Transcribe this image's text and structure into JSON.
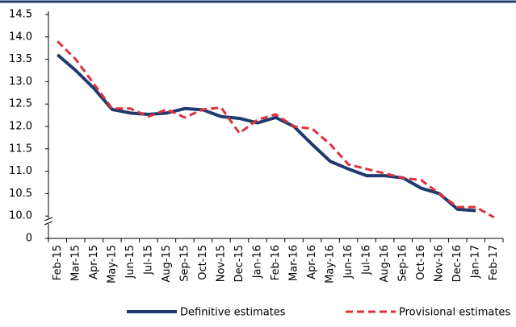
{
  "chart_data": {
    "type": "line",
    "categories": [
      "Feb-15",
      "Mar-15",
      "Apr-15",
      "May-15",
      "Jun-15",
      "Jul-15",
      "Aug-15",
      "Sep-15",
      "Oct-15",
      "Nov-15",
      "Dec-15",
      "Jan-16",
      "Feb-16",
      "Mar-16",
      "Apr-16",
      "May-16",
      "Jun-16",
      "Jul-16",
      "Aug-16",
      "Sep-16",
      "Oct-16",
      "Nov-16",
      "Dec-16",
      "Jan-17",
      "Feb-17"
    ],
    "series": [
      {
        "name": "Definitive estimates",
        "color": "#1f3a6e",
        "dashed": false,
        "values": [
          13.6,
          13.25,
          12.85,
          12.38,
          12.3,
          12.27,
          12.3,
          12.4,
          12.37,
          12.22,
          12.18,
          12.08,
          12.2,
          12.0,
          11.6,
          11.22,
          11.05,
          10.9,
          10.9,
          10.85,
          10.62,
          10.5,
          10.15,
          10.12,
          null
        ]
      },
      {
        "name": "Provisional estimates",
        "color": "#e0303a",
        "dashed": true,
        "values": [
          13.9,
          13.5,
          12.95,
          12.4,
          12.4,
          12.22,
          12.38,
          12.2,
          12.38,
          12.42,
          11.85,
          12.15,
          12.27,
          12.0,
          11.95,
          11.6,
          11.15,
          11.05,
          10.95,
          10.85,
          10.8,
          10.5,
          10.2,
          10.2,
          9.97
        ]
      }
    ],
    "ylim": [
      9.5,
      14.5
    ],
    "axis_break": true,
    "yticks": [
      0,
      {
        "value": 10,
        "label": "10.0"
      },
      10.5,
      {
        "value": 11,
        "label": "11.0"
      },
      11.5,
      {
        "value": 12,
        "label": "12.0"
      },
      12.5,
      {
        "value": 13,
        "label": "13.0"
      },
      13.5,
      {
        "value": 14,
        "label": "14.0"
      },
      14.5
    ],
    "legend": "bottom"
  }
}
